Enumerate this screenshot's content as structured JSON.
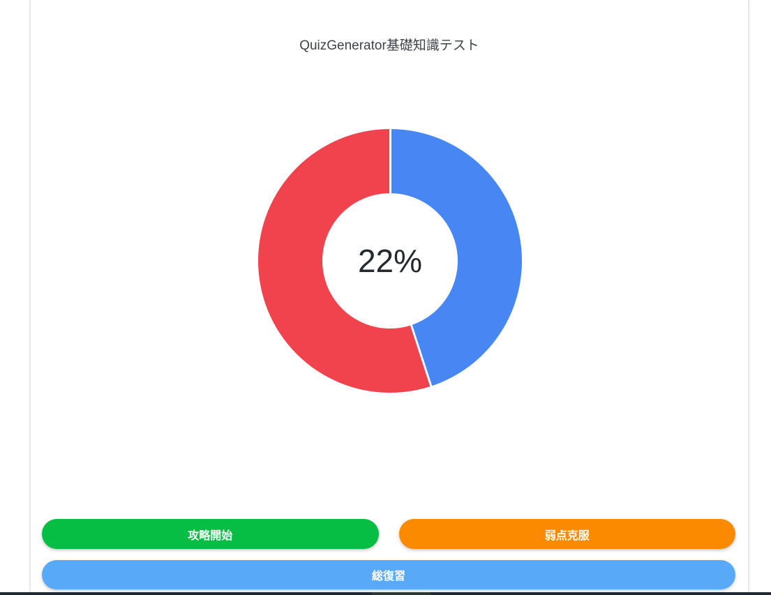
{
  "header": {
    "title": "QuizGenerator基礎知識テスト"
  },
  "chart_data": {
    "type": "doughnut",
    "title": "QuizGenerator基礎知識テスト",
    "center_label": "22%",
    "series": [
      {
        "name": "blue-segment",
        "value": 45,
        "color": "#4687F4"
      },
      {
        "name": "red-segment",
        "value": 55,
        "color": "#F0434D"
      }
    ],
    "start_angle_deg": 0,
    "direction": "clockwise",
    "cutout_ratio": 0.51,
    "segment_border_color": "#ffffff",
    "legend": "none"
  },
  "buttons": [
    {
      "label": "攻略開始",
      "color": "#06BE44"
    },
    {
      "label": "弱点克服",
      "color": "#FA8B00"
    },
    {
      "label": "総復習",
      "color": "#58A9F8"
    }
  ],
  "colors": {
    "card_background": "#ffffff",
    "card_border": "#e9e9e9",
    "title_text": "#3d4348",
    "center_label_text": "#24292e",
    "button_text": "#ffffff",
    "taskbar_dark": "#1d2a37",
    "taskbar_segment": "#2b3b33"
  }
}
